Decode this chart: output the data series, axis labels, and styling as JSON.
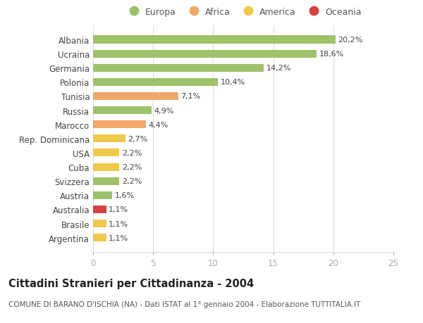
{
  "countries": [
    "Albania",
    "Ucraina",
    "Germania",
    "Polonia",
    "Tunisia",
    "Russia",
    "Marocco",
    "Rep. Dominicana",
    "USA",
    "Cuba",
    "Svizzera",
    "Austria",
    "Australia",
    "Brasile",
    "Argentina"
  ],
  "values": [
    20.2,
    18.6,
    14.2,
    10.4,
    7.1,
    4.9,
    4.4,
    2.7,
    2.2,
    2.2,
    2.2,
    1.6,
    1.1,
    1.1,
    1.1
  ],
  "labels": [
    "20,2%",
    "18,6%",
    "14,2%",
    "10,4%",
    "7,1%",
    "4,9%",
    "4,4%",
    "2,7%",
    "2,2%",
    "2,2%",
    "2,2%",
    "1,6%",
    "1,1%",
    "1,1%",
    "1,1%"
  ],
  "continents": [
    "Europa",
    "Europa",
    "Europa",
    "Europa",
    "Africa",
    "Europa",
    "Africa",
    "America",
    "America",
    "America",
    "Europa",
    "Europa",
    "Oceania",
    "America",
    "America"
  ],
  "continent_colors": {
    "Europa": "#9dc26b",
    "Africa": "#f0a868",
    "America": "#f0c84a",
    "Oceania": "#d94040"
  },
  "legend_order": [
    "Europa",
    "Africa",
    "America",
    "Oceania"
  ],
  "legend_colors": [
    "#9dc26b",
    "#f0a868",
    "#f0c84a",
    "#d94040"
  ],
  "title": "Cittadini Stranieri per Cittadinanza - 2004",
  "subtitle": "COMUNE DI BARANO D'ISCHIA (NA) - Dati ISTAT al 1° gennaio 2004 - Elaborazione TUTTITALIA.IT",
  "xlim": [
    0,
    25
  ],
  "xticks": [
    0,
    5,
    10,
    15,
    20,
    25
  ],
  "background_color": "#ffffff",
  "grid_color": "#dddddd",
  "bar_height": 0.55,
  "label_fontsize": 8.0,
  "title_fontsize": 10.5,
  "subtitle_fontsize": 7.5
}
